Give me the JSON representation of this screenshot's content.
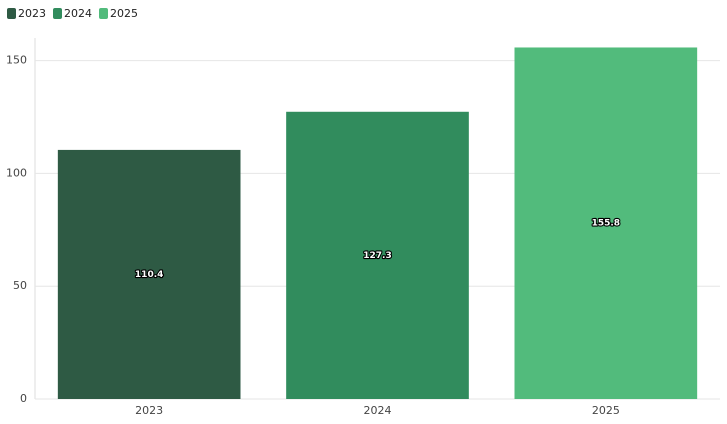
{
  "chart_data": {
    "type": "bar",
    "categories": [
      "2023",
      "2024",
      "2025"
    ],
    "values": [
      110.4,
      127.3,
      155.8
    ],
    "colors": [
      "#2e5a44",
      "#318c5d",
      "#52bb7c"
    ],
    "ylim": [
      0,
      160
    ],
    "yticks": [
      0,
      50,
      100,
      150
    ],
    "grid": true,
    "legend": "top-left"
  }
}
